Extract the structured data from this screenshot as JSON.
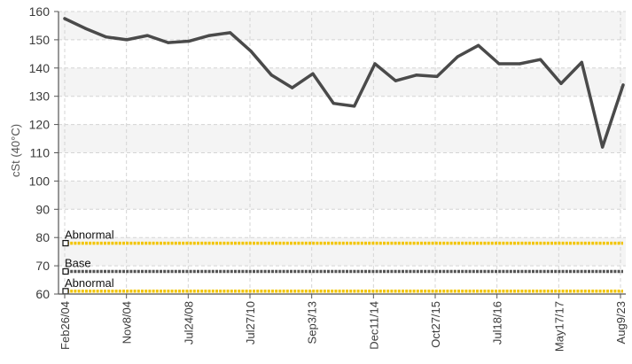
{
  "chart_data": {
    "type": "line",
    "ylabel": "cSt (40°C)",
    "xlabel": "",
    "ylim": [
      60,
      160
    ],
    "yticks": [
      60,
      70,
      80,
      90,
      100,
      110,
      120,
      130,
      140,
      150,
      160
    ],
    "x_tick_labels": [
      "Feb26/04",
      "Nov8/04",
      "Jul24/08",
      "Jul27/10",
      "Sep3/13",
      "Dec11/14",
      "Oct27/15",
      "Jul18/16",
      "May17/17",
      "Aug9/23"
    ],
    "grid": true,
    "series": [
      {
        "values": [
          157.5,
          154,
          151,
          150,
          151.5,
          149,
          149.5,
          151.5,
          152.5,
          146,
          137.5,
          133,
          138,
          127.5,
          126.5,
          141.5,
          135.5,
          137.5,
          137,
          144,
          148,
          141.5,
          141.5,
          143,
          134.5,
          142,
          112,
          134
        ],
        "color": "#4a4a4a"
      }
    ],
    "reference_lines": [
      {
        "label": "Abnormal",
        "value": 78,
        "color": "#f2c500"
      },
      {
        "label": "Base",
        "value": 68,
        "color": "#555555"
      },
      {
        "label": "Abnormal",
        "value": 61,
        "color": "#f2c500"
      }
    ]
  }
}
